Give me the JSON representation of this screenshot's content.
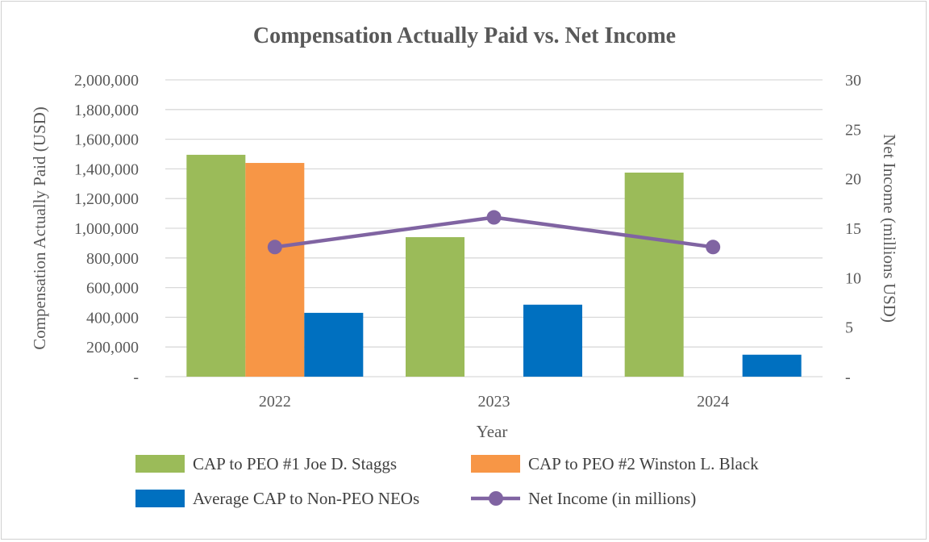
{
  "chart_data": {
    "type": "bar",
    "title": "Compensation Actually Paid vs. Net Income",
    "xlabel": "Year",
    "ylabel": "Compensation Actually Paid (USD)",
    "y2label": "Net Income (millions USD)",
    "categories": [
      "2022",
      "2023",
      "2024"
    ],
    "ylim": [
      0,
      2000000
    ],
    "y2lim": [
      0,
      30
    ],
    "yticks": [
      0,
      200000,
      400000,
      600000,
      800000,
      1000000,
      1200000,
      1400000,
      1600000,
      1800000,
      2000000
    ],
    "yticklabels": [
      "-",
      "200,000",
      "400,000",
      "600,000",
      "800,000",
      "1,000,000",
      "1,200,000",
      "1,400,000",
      "1,600,000",
      "1,800,000",
      "2,000,000"
    ],
    "y2ticks": [
      0,
      5,
      10,
      15,
      20,
      25,
      30
    ],
    "y2ticklabels": [
      "-",
      "5",
      "10",
      "15",
      "20",
      "25",
      "30"
    ],
    "series": [
      {
        "name": "CAP to PEO #1 Joe D. Staggs",
        "type": "bar",
        "color": "#9BBB59",
        "values": [
          1495000,
          940000,
          1375000
        ]
      },
      {
        "name": "CAP to PEO #2 Winston L. Black",
        "type": "bar",
        "color": "#F79646",
        "values": [
          1440000,
          null,
          null
        ]
      },
      {
        "name": "Average CAP to Non-PEO NEOs",
        "type": "bar",
        "color": "#0070C0",
        "values": [
          430000,
          485000,
          148000
        ]
      },
      {
        "name": "Net Income (in millions)",
        "type": "line",
        "axis": "secondary",
        "color": "#8064A2",
        "values": [
          13.1,
          16.1,
          13.1
        ]
      }
    ],
    "grid": true,
    "legend": "bottom"
  }
}
